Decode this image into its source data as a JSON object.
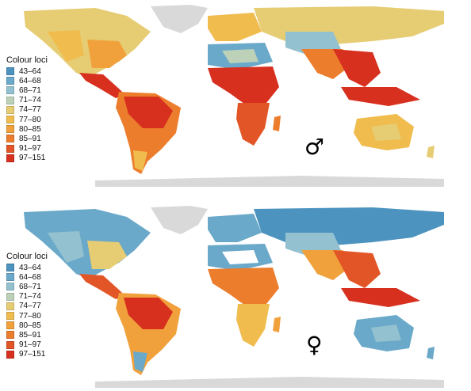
{
  "legend": {
    "title": "Colour loci",
    "classes": [
      {
        "label": "43–64",
        "color": "#4c93bf"
      },
      {
        "label": "64–68",
        "color": "#6aa9c9"
      },
      {
        "label": "68–71",
        "color": "#94c1cf"
      },
      {
        "label": "71–74",
        "color": "#bdd1b9"
      },
      {
        "label": "74–77",
        "color": "#e6cc73"
      },
      {
        "label": "77–80",
        "color": "#f0bc4e"
      },
      {
        "label": "80–85",
        "color": "#f1a13c"
      },
      {
        "label": "85–91",
        "color": "#ec7d2d"
      },
      {
        "label": "91–97",
        "color": "#e25526"
      },
      {
        "label": "97–151",
        "color": "#d7301f"
      }
    ]
  },
  "panels": [
    {
      "id": "male",
      "symbol": "♂",
      "symbol_name": "male-symbol"
    },
    {
      "id": "female",
      "symbol": "♀",
      "symbol_name": "female-symbol"
    }
  ],
  "colors": {
    "ice": "#d9d9d9",
    "background": "#ffffff"
  }
}
